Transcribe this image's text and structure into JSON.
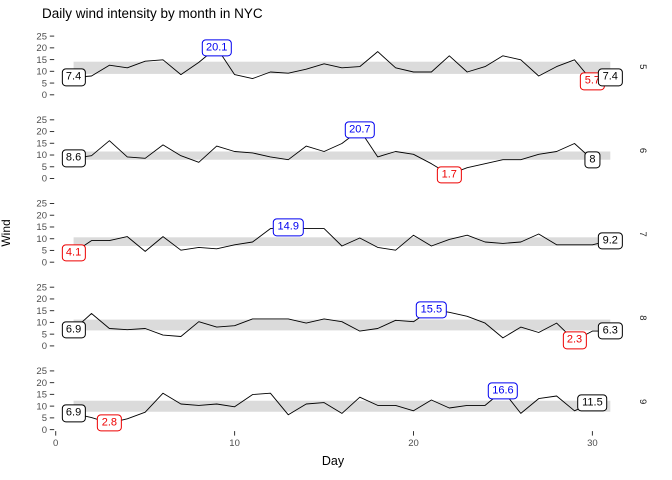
{
  "title": "Daily wind intensity by month in NYC",
  "axes": {
    "x_label": "Day",
    "y_label": "Wind",
    "x_ticks": [
      0,
      10,
      20,
      30
    ],
    "y_ticks": [
      0,
      5,
      10,
      15,
      20,
      25
    ],
    "x_range": [
      0,
      31.5
    ],
    "y_range": [
      0,
      27.5
    ]
  },
  "colors": {
    "line": "#000000",
    "band": "#DBDBDB",
    "tick_mark": "#333333",
    "tick_label": "#4D4D4D",
    "strip_text": "#1A1A1A",
    "label_first": "#000000",
    "label_last": "#000000",
    "label_max": "#0000F0",
    "label_min": "#EE0000"
  },
  "chart_data": {
    "type": "line",
    "title": "Daily wind intensity by month in NYC",
    "xlabel": "Day",
    "ylabel": "Wind",
    "facet_variable": "Month",
    "legend": "none",
    "grid": "off",
    "facets": [
      {
        "month": "5",
        "values": [
          7.4,
          8.0,
          12.6,
          11.5,
          14.3,
          14.9,
          8.6,
          13.8,
          20.1,
          8.6,
          6.9,
          9.7,
          9.2,
          10.9,
          13.2,
          11.5,
          12.0,
          18.4,
          11.5,
          9.7,
          9.7,
          16.6,
          9.7,
          12.0,
          16.6,
          14.9,
          8.0,
          12.0,
          14.9,
          5.7,
          7.4
        ],
        "band": [
          8.9,
          14.1
        ],
        "labels": [
          {
            "role": "first",
            "day": 1,
            "value": 7.4,
            "text": "7.4"
          },
          {
            "role": "max",
            "day": 9,
            "value": 20.1,
            "text": "20.1"
          },
          {
            "role": "min",
            "day": 30,
            "value": 5.7,
            "text": "5.7"
          },
          {
            "role": "last",
            "day": 31,
            "value": 7.4,
            "text": "7.4"
          }
        ]
      },
      {
        "month": "6",
        "values": [
          8.6,
          9.7,
          16.1,
          9.2,
          8.6,
          14.3,
          9.7,
          6.9,
          13.8,
          11.5,
          10.9,
          9.2,
          8.0,
          13.8,
          11.5,
          14.9,
          20.7,
          9.2,
          11.5,
          10.3,
          6.3,
          1.7,
          4.6,
          6.3,
          8.0,
          8.0,
          10.3,
          11.5,
          14.9,
          8.0
        ],
        "band": [
          8.0,
          11.5
        ],
        "labels": [
          {
            "role": "first",
            "day": 1,
            "value": 8.6,
            "text": "8.6"
          },
          {
            "role": "max",
            "day": 17,
            "value": 20.7,
            "text": "20.7"
          },
          {
            "role": "min",
            "day": 22,
            "value": 1.7,
            "text": "1.7"
          },
          {
            "role": "last",
            "day": 30,
            "value": 8.0,
            "text": "8"
          }
        ]
      },
      {
        "month": "7",
        "values": [
          4.1,
          9.2,
          9.2,
          10.9,
          4.6,
          10.9,
          5.1,
          6.3,
          5.7,
          7.4,
          8.6,
          14.3,
          14.9,
          14.3,
          14.3,
          6.9,
          10.3,
          6.3,
          5.1,
          11.5,
          6.9,
          9.7,
          11.5,
          8.6,
          8.0,
          8.6,
          12.0,
          7.4,
          7.4,
          7.4,
          9.2
        ],
        "band": [
          6.9,
          10.6
        ],
        "labels": [
          {
            "role": "min",
            "day": 1,
            "value": 4.1,
            "text": "4.1"
          },
          {
            "role": "max",
            "day": 13,
            "value": 14.9,
            "text": "14.9"
          },
          {
            "role": "last",
            "day": 31,
            "value": 9.2,
            "text": "9.2"
          }
        ]
      },
      {
        "month": "8",
        "values": [
          6.9,
          13.8,
          7.4,
          6.9,
          7.4,
          4.6,
          4.0,
          10.3,
          8.0,
          8.6,
          11.5,
          11.5,
          11.5,
          9.7,
          11.5,
          10.3,
          6.3,
          7.4,
          10.9,
          10.3,
          15.5,
          14.3,
          12.6,
          9.7,
          3.4,
          8.0,
          5.7,
          9.7,
          2.3,
          6.3,
          6.3
        ],
        "band": [
          6.6,
          11.2
        ],
        "labels": [
          {
            "role": "first",
            "day": 1,
            "value": 6.9,
            "text": "6.9"
          },
          {
            "role": "max",
            "day": 21,
            "value": 15.5,
            "text": "15.5"
          },
          {
            "role": "min",
            "day": 29,
            "value": 2.3,
            "text": "2.3"
          },
          {
            "role": "last",
            "day": 31,
            "value": 6.3,
            "text": "6.3"
          }
        ]
      },
      {
        "month": "9",
        "values": [
          6.9,
          5.1,
          2.8,
          4.6,
          7.4,
          15.5,
          10.9,
          10.3,
          10.9,
          9.7,
          14.9,
          15.5,
          6.3,
          10.9,
          11.5,
          6.9,
          13.8,
          10.3,
          10.3,
          8.0,
          12.6,
          9.2,
          10.3,
          10.3,
          16.6,
          6.9,
          13.2,
          14.3,
          8.0,
          11.5
        ],
        "band": [
          7.6,
          12.3
        ],
        "labels": [
          {
            "role": "first",
            "day": 1,
            "value": 6.9,
            "text": "6.9"
          },
          {
            "role": "min",
            "day": 3,
            "value": 2.8,
            "text": "2.8"
          },
          {
            "role": "max",
            "day": 25,
            "value": 16.6,
            "text": "16.6"
          },
          {
            "role": "last",
            "day": 30,
            "value": 11.5,
            "text": "11.5"
          }
        ]
      }
    ]
  }
}
